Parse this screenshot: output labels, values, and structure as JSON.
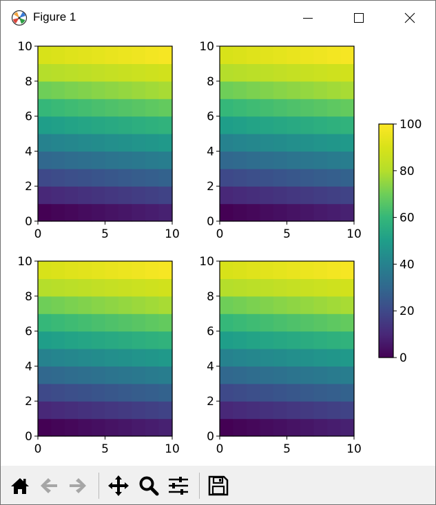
{
  "window": {
    "title": "Figure 1",
    "app_icon": "matplotlib-logo-icon",
    "controls": [
      "minimize-icon",
      "maximize-icon",
      "close-icon"
    ]
  },
  "toolbar": {
    "buttons": [
      {
        "name": "home-button",
        "icon": "home-icon"
      },
      {
        "name": "back-button",
        "icon": "left-arrow-icon"
      },
      {
        "name": "forward-button",
        "icon": "right-arrow-icon"
      },
      {
        "name": "pan-button",
        "icon": "move-icon"
      },
      {
        "name": "zoom-button",
        "icon": "magnifier-icon"
      },
      {
        "name": "configure-subplots-button",
        "icon": "sliders-icon"
      },
      {
        "name": "save-button",
        "icon": "floppy-disk-icon"
      }
    ]
  },
  "chart_data": [
    {
      "type": "heatmap",
      "panel": "top-left",
      "x": [
        0,
        10
      ],
      "y": [
        0,
        10
      ],
      "xticks": [
        0,
        5,
        10
      ],
      "yticks": [
        0,
        2,
        4,
        6,
        8,
        10
      ],
      "values": "value = 10*row + 0.9*col (row 0..9 bottom-to-top, col 0..9)",
      "xlim": [
        0,
        10
      ],
      "ylim": [
        0,
        10
      ],
      "cmap": "viridis",
      "clim": [
        0,
        100
      ]
    },
    {
      "type": "heatmap",
      "panel": "top-right",
      "x": [
        0,
        10
      ],
      "y": [
        0,
        10
      ],
      "xticks": [
        0,
        5,
        10
      ],
      "yticks": [
        0,
        2,
        4,
        6,
        8,
        10
      ],
      "values": "value = 10*row + 0.9*col (row 0..9 bottom-to-top, col 0..9)",
      "xlim": [
        0,
        10
      ],
      "ylim": [
        0,
        10
      ],
      "cmap": "viridis",
      "clim": [
        0,
        100
      ]
    },
    {
      "type": "heatmap",
      "panel": "bottom-left",
      "x": [
        0,
        10
      ],
      "y": [
        0,
        10
      ],
      "xticks": [
        0,
        5,
        10
      ],
      "yticks": [
        0,
        2,
        4,
        6,
        8,
        10
      ],
      "values": "value = 10*row + 0.9*col (row 0..9 bottom-to-top, col 0..9)",
      "xlim": [
        0,
        10
      ],
      "ylim": [
        0,
        10
      ],
      "cmap": "viridis",
      "clim": [
        0,
        100
      ]
    },
    {
      "type": "heatmap",
      "panel": "bottom-right",
      "x": [
        0,
        10
      ],
      "y": [
        0,
        10
      ],
      "xticks": [
        0,
        5,
        10
      ],
      "yticks": [
        0,
        2,
        4,
        6,
        8,
        10
      ],
      "values": "value = 10*row + 0.9*col (row 0..9 bottom-to-top, col 0..9)",
      "xlim": [
        0,
        10
      ],
      "ylim": [
        0,
        10
      ],
      "cmap": "viridis",
      "clim": [
        0,
        100
      ]
    }
  ],
  "colorbar": {
    "ticks": [
      0,
      20,
      40,
      60,
      80,
      100
    ],
    "range": [
      0,
      100
    ],
    "cmap": "viridis"
  }
}
